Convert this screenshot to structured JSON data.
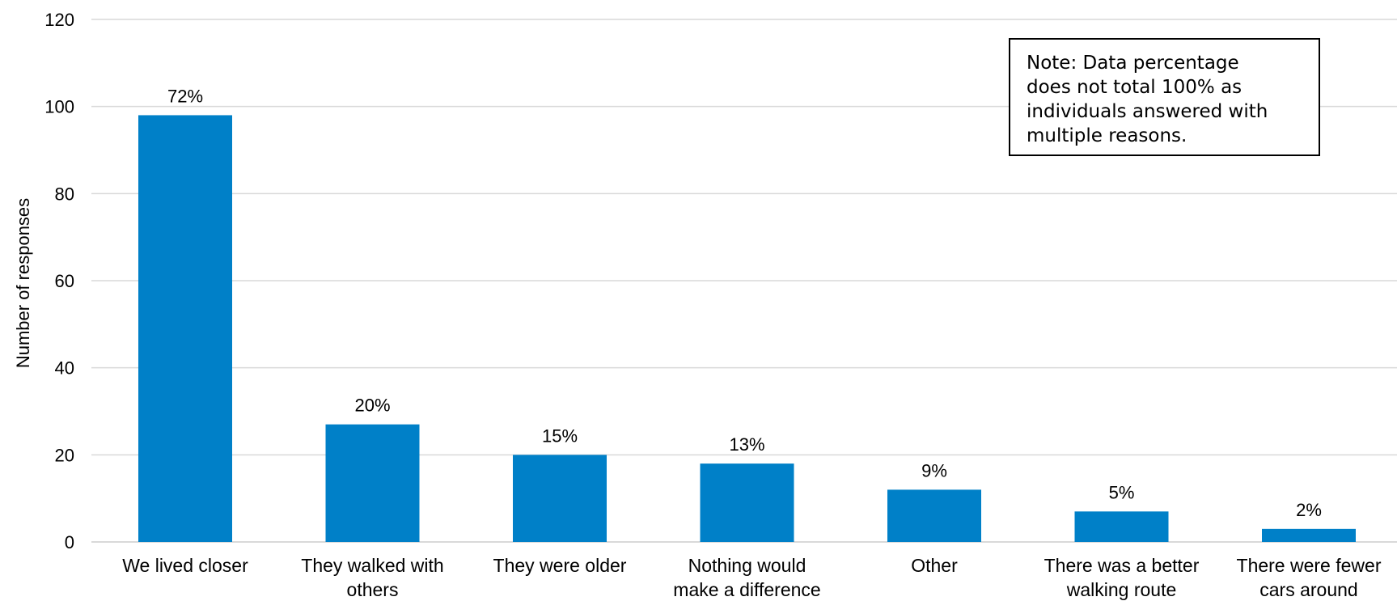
{
  "chart_data": {
    "type": "bar",
    "title": "",
    "xlabel": "",
    "ylabel": "Number of responses",
    "ylim": [
      0,
      120
    ],
    "yticks": [
      0,
      20,
      40,
      60,
      80,
      100,
      120
    ],
    "grid": true,
    "bar_color": "#0080C8",
    "categories": [
      [
        "We lived closer"
      ],
      [
        "They walked with",
        "others"
      ],
      [
        "They were older"
      ],
      [
        "Nothing would",
        "make a difference"
      ],
      [
        "Other"
      ],
      [
        "There was a better",
        "walking route"
      ],
      [
        "There were fewer",
        "cars around"
      ]
    ],
    "values": [
      98,
      27,
      20,
      18,
      12,
      7,
      3
    ],
    "data_labels": [
      "72%",
      "20%",
      "15%",
      "13%",
      "9%",
      "5%",
      "2%"
    ],
    "annotations": [
      "Note: Data percentage\ndoes not total 100% as\nindividuals answered with\nmultiple reasons."
    ]
  }
}
